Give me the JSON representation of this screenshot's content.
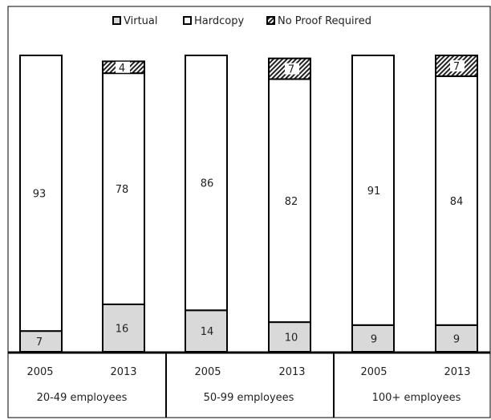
{
  "chart_data": {
    "type": "bar",
    "stacked": true,
    "percent_stacked": true,
    "groups": [
      "20-49 employees",
      "50-99 employees",
      "100+ employees"
    ],
    "years": [
      "2005",
      "2013"
    ],
    "categories": [
      "2005 · 20-49 employees",
      "2013 · 20-49 employees",
      "2005 · 50-99 employees",
      "2013 · 50-99 employees",
      "2005 · 100+ employees",
      "2013 · 100+ employees"
    ],
    "series": [
      {
        "name": "Virtual",
        "values": [
          7,
          16,
          14,
          10,
          9,
          9
        ],
        "color": "#d9d9d9"
      },
      {
        "name": "Hardcopy",
        "values": [
          93,
          78,
          86,
          82,
          91,
          84
        ],
        "color": "#ffffff"
      },
      {
        "name": "No Proof Required",
        "values": [
          0,
          4,
          0,
          7,
          0,
          7
        ],
        "color": "hatch"
      }
    ],
    "ylim": [
      0,
      100
    ],
    "title": "",
    "xlabel": "",
    "ylabel": "",
    "grid": false,
    "legend_position": "top"
  }
}
